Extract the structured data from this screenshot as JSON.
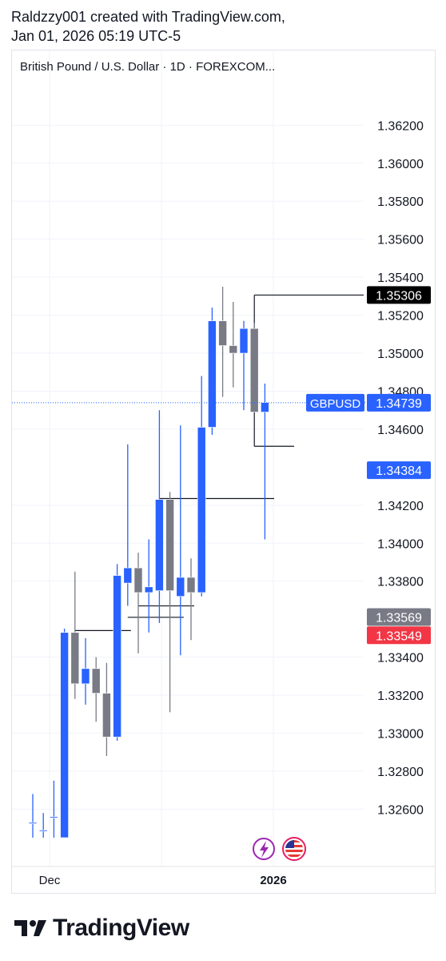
{
  "header": {
    "line1": "Raldzzy001 created with TradingView.com,",
    "line2": "Jan 01, 2026 05:19 UTC-5"
  },
  "footer": {
    "brand": "TradingView"
  },
  "colors": {
    "up": "#2962ff",
    "down": "#787b86",
    "label_dark": "#000000",
    "label_red": "#f23645",
    "label_blue": "#2962ff",
    "label_gray": "#787b86"
  },
  "chart_data": {
    "type": "candlestick",
    "title": "British Pound / U.S. Dollar · 1D · FOREXCOM...",
    "symbol": "GBPUSD",
    "x_labels": [
      "Dec",
      "2026"
    ],
    "ylim": [
      1.3245,
      1.3645
    ],
    "y_ticks": [
      "1.36200",
      "1.36000",
      "1.35800",
      "1.35600",
      "1.35400",
      "1.35200",
      "1.35000",
      "1.34800",
      "1.34600",
      "1.34200",
      "1.34000",
      "1.33800",
      "1.33400",
      "1.33200",
      "1.33000",
      "1.32800",
      "1.32600"
    ],
    "price_labels": [
      {
        "text": "1.35306",
        "value": 1.35306,
        "style": "dark"
      },
      {
        "text": "1.34739",
        "value": 1.34739,
        "style": "blue",
        "tag": "GBPUSD"
      },
      {
        "text": "1.34384",
        "value": 1.34384,
        "style": "blue"
      },
      {
        "text": "1.33569",
        "value": 1.33569,
        "style": "gray"
      },
      {
        "text": "1.33549",
        "value": 1.33549,
        "style": "red"
      }
    ],
    "candles": [
      {
        "o": 1.3253,
        "h": 1.3268,
        "l": 1.3245,
        "c": 1.3253
      },
      {
        "o": 1.3249,
        "h": 1.3258,
        "l": 1.3245,
        "c": 1.3249
      },
      {
        "o": 1.3256,
        "h": 1.3275,
        "l": 1.3245,
        "c": 1.3256
      },
      {
        "o": 1.3245,
        "h": 1.3355,
        "l": 1.3245,
        "c": 1.3353
      },
      {
        "o": 1.3353,
        "h": 1.3385,
        "l": 1.3318,
        "c": 1.3326
      },
      {
        "o": 1.3326,
        "h": 1.335,
        "l": 1.3315,
        "c": 1.3334
      },
      {
        "o": 1.3334,
        "h": 1.334,
        "l": 1.3306,
        "c": 1.3321
      },
      {
        "o": 1.3321,
        "h": 1.3337,
        "l": 1.3288,
        "c": 1.3298
      },
      {
        "o": 1.3298,
        "h": 1.3389,
        "l": 1.3296,
        "c": 1.3383
      },
      {
        "o": 1.3379,
        "h": 1.3452,
        "l": 1.3367,
        "c": 1.3387
      },
      {
        "o": 1.3387,
        "h": 1.3395,
        "l": 1.3342,
        "c": 1.3374
      },
      {
        "o": 1.3374,
        "h": 1.3402,
        "l": 1.3353,
        "c": 1.3377
      },
      {
        "o": 1.3375,
        "h": 1.347,
        "l": 1.3358,
        "c": 1.3423
      },
      {
        "o": 1.3423,
        "h": 1.3427,
        "l": 1.3311,
        "c": 1.3375
      },
      {
        "o": 1.3372,
        "h": 1.3462,
        "l": 1.3341,
        "c": 1.3382
      },
      {
        "o": 1.3382,
        "h": 1.3392,
        "l": 1.3349,
        "c": 1.3374
      },
      {
        "o": 1.3374,
        "h": 1.3488,
        "l": 1.3372,
        "c": 1.3461
      },
      {
        "o": 1.3461,
        "h": 1.3524,
        "l": 1.3457,
        "c": 1.3517
      },
      {
        "o": 1.3517,
        "h": 1.3535,
        "l": 1.3477,
        "c": 1.3504
      },
      {
        "o": 1.3504,
        "h": 1.3527,
        "l": 1.3482,
        "c": 1.35
      },
      {
        "o": 1.35,
        "h": 1.3517,
        "l": 1.347,
        "c": 1.3513
      },
      {
        "o": 1.3513,
        "h": 1.3516,
        "l": 1.3469,
        "c": 1.3469
      },
      {
        "o": 1.3469,
        "h": 1.3484,
        "l": 1.3402,
        "c": 1.3474
      }
    ],
    "level_lines": [
      {
        "value": 1.35306,
        "from_candle": 21
      },
      {
        "value": 1.3451,
        "from_candle": 21
      },
      {
        "value": 1.34235,
        "from_candle": 12
      },
      {
        "value": 1.3354,
        "from_candle": 4
      },
      {
        "value": 1.3361,
        "from_candle": 9
      },
      {
        "value": 1.3367,
        "from_candle": 10
      }
    ],
    "grid": true,
    "legend": "none",
    "icons": [
      "lightning-icon",
      "us-flag-icon"
    ]
  }
}
